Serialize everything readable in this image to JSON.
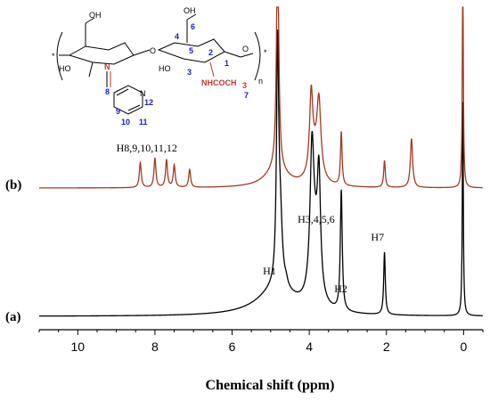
{
  "chart_data": {
    "type": "line",
    "xlabel": "Chemical shift (ppm)",
    "x_ticks": [
      10,
      8,
      6,
      4,
      2,
      0
    ],
    "xlim": [
      11,
      -0.5
    ],
    "x_reversed": true,
    "colors": {
      "a": "#000000",
      "b": "#a33a1e"
    },
    "series": [
      {
        "name": "(a)",
        "color": "#000000",
        "baseline": 0,
        "peaks": [
          {
            "x": 4.82,
            "h": 260,
            "w": 0.035
          },
          {
            "x": 4.75,
            "h": 70,
            "w": 0.06
          },
          {
            "x": 4.6,
            "h": 6,
            "w": 0.05
          },
          {
            "x": 4.85,
            "h": 30,
            "w": 0.6
          },
          {
            "x": 3.93,
            "h": 150,
            "w": 0.06
          },
          {
            "x": 3.85,
            "h": 55,
            "w": 0.12
          },
          {
            "x": 3.75,
            "h": 125,
            "w": 0.05
          },
          {
            "x": 3.17,
            "h": 135,
            "w": 0.03
          },
          {
            "x": 2.05,
            "h": 70,
            "w": 0.025
          },
          {
            "x": 0.02,
            "h": 240,
            "w": 0.015
          }
        ]
      },
      {
        "name": "(b)",
        "color": "#a33a1e",
        "baseline": 0,
        "peaks": [
          {
            "x": 8.38,
            "h": 28,
            "w": 0.03
          },
          {
            "x": 8.0,
            "h": 33,
            "w": 0.03
          },
          {
            "x": 7.7,
            "h": 31,
            "w": 0.03
          },
          {
            "x": 7.5,
            "h": 25,
            "w": 0.03
          },
          {
            "x": 7.1,
            "h": 20,
            "w": 0.03
          },
          {
            "x": 4.82,
            "h": 260,
            "w": 0.035
          },
          {
            "x": 4.85,
            "h": 20,
            "w": 0.35
          },
          {
            "x": 3.95,
            "h": 85,
            "w": 0.05
          },
          {
            "x": 3.75,
            "h": 78,
            "w": 0.06
          },
          {
            "x": 3.85,
            "h": 30,
            "w": 0.15
          },
          {
            "x": 3.17,
            "h": 60,
            "w": 0.025
          },
          {
            "x": 2.05,
            "h": 30,
            "w": 0.025
          },
          {
            "x": 1.35,
            "h": 55,
            "w": 0.035
          },
          {
            "x": 0.02,
            "h": 260,
            "w": 0.015
          }
        ]
      }
    ],
    "annotations": [
      {
        "text": "H8,9,10,11,12",
        "series": "b"
      },
      {
        "text": "H3,4,5,6",
        "series": "a"
      },
      {
        "text": "H7",
        "series": "a"
      },
      {
        "text": "H1",
        "series": "a"
      },
      {
        "text": "H2",
        "series": "a"
      }
    ],
    "panel_labels": [
      "(a)",
      "(b)"
    ]
  },
  "structure": {
    "atoms": {
      "oh1": "OH",
      "ho1": "HO",
      "n": "N",
      "o_link": "O",
      "ho2": "HO",
      "oh2": "OH",
      "o_ring": "O",
      "amide": "NHCOCH",
      "sub3": "3",
      "n_sub": "n",
      "star1": "*",
      "star2": "*",
      "pyr_n": "N"
    },
    "numbers": [
      "1",
      "2",
      "3",
      "4",
      "5",
      "6",
      "7",
      "8",
      "9",
      "10",
      "11",
      "12"
    ]
  }
}
